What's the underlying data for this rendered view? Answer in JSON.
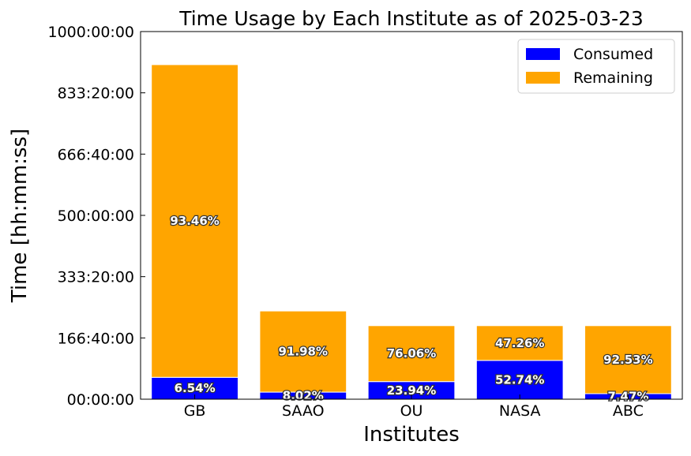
{
  "chart_data": {
    "type": "bar",
    "stacked": true,
    "title": "Time Usage by Each Institute as of 2025-03-23",
    "xlabel": "Institutes",
    "ylabel": "Time [hh:mm:ss]",
    "categories": [
      "GB",
      "SAAO",
      "OU",
      "NASA",
      "ABC"
    ],
    "ylim_hours": [
      0,
      1000
    ],
    "yticks_hours": [
      0,
      166.6667,
      333.3333,
      500,
      666.6667,
      833.3333,
      1000
    ],
    "ytick_labels": [
      "00:00:00",
      "166:40:00",
      "333:20:00",
      "500:00:00",
      "666:40:00",
      "833:20:00",
      "1000:00:00"
    ],
    "series": [
      {
        "name": "Consumed",
        "color": "#0000ff",
        "values_hours": [
          59.5,
          19.2,
          47.9,
          105.5,
          15.0
        ],
        "labels": [
          "6.54%",
          "8.02%",
          "23.94%",
          "52.74%",
          "7.47%"
        ]
      },
      {
        "name": "Remaining",
        "color": "#ffa500",
        "values_hours": [
          850.5,
          220.8,
          152.1,
          94.5,
          185.0
        ],
        "labels": [
          "93.46%",
          "91.98%",
          "76.06%",
          "47.26%",
          "92.53%"
        ]
      }
    ],
    "legend_position": "top-right",
    "grid": false
  }
}
